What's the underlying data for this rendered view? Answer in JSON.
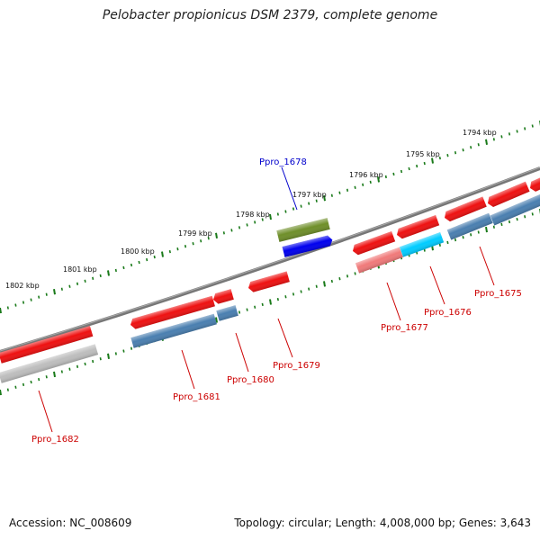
{
  "title": "Pelobacter propionicus DSM 2379, complete genome",
  "footer": {
    "accession": "Accession: NC_008609",
    "summary": "Topology: circular; Length: 4,008,000 bp; Genes: 3,643"
  },
  "ruler": [
    {
      "label": "1802 kbp"
    },
    {
      "label": "1801 kbp"
    },
    {
      "label": "1800 kbp"
    },
    {
      "label": "1799 kbp"
    },
    {
      "label": "1798 kbp"
    },
    {
      "label": "1797 kbp"
    },
    {
      "label": "1796 kbp"
    },
    {
      "label": "1795 kbp"
    },
    {
      "label": "1794 kbp"
    }
  ],
  "gene_labels": [
    {
      "text": "Ppro_1678",
      "color": "#0000cc"
    },
    {
      "text": "Ppro_1675",
      "color": "#cc0000"
    },
    {
      "text": "Ppro_1676",
      "color": "#cc0000"
    },
    {
      "text": "Ppro_1677",
      "color": "#cc0000"
    },
    {
      "text": "Ppro_1679",
      "color": "#cc0000"
    },
    {
      "text": "Ppro_1680",
      "color": "#cc0000"
    },
    {
      "text": "Ppro_1681",
      "color": "#cc0000"
    },
    {
      "text": "Ppro_1682",
      "color": "#cc0000"
    }
  ],
  "colors": {
    "backbone": "#6e6e6e",
    "tick": "#1a7a1a",
    "cds_red": "#ee1111",
    "steel_blue": "#4a7fb0",
    "grey": "#bbbbbb",
    "olive": "#6f8f2a",
    "blue": "#0000ee",
    "cyan": "#00ccff",
    "pink": "#f07a7a"
  }
}
